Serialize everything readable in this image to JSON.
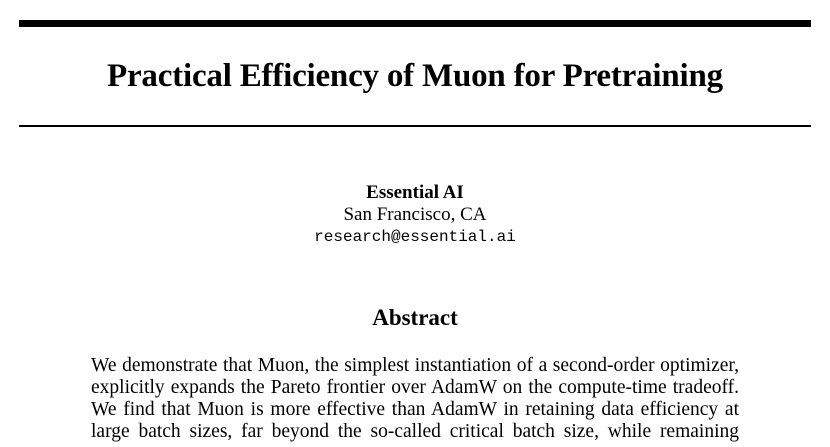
{
  "paper": {
    "title": "Practical Efficiency of Muon for Pretraining",
    "author": {
      "name": "Essential AI",
      "location": "San Francisco, CA",
      "email": "research@essential.ai"
    },
    "abstract": {
      "heading": "Abstract",
      "lines": [
        "We demonstrate that Muon, the simplest instantiation of a second-order optimizer,",
        "explicitly expands the Pareto frontier over AdamW on the compute-time tradeoff.",
        "We find that Muon is more effective than AdamW in retaining data efficiency at",
        "large batch sizes, far beyond the so-called critical batch size, while remaining"
      ]
    }
  }
}
